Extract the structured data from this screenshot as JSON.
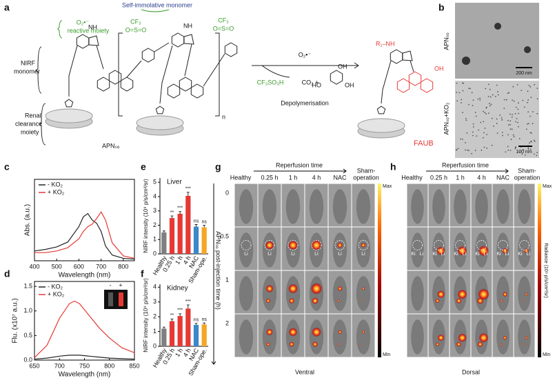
{
  "panel_labels": [
    "a",
    "b",
    "c",
    "d",
    "e",
    "f",
    "g",
    "h"
  ],
  "scheme": {
    "self_immolative": "Self-immolative monomer",
    "reactive": [
      "O₂•⁻",
      "reactive moiety"
    ],
    "cf3": [
      "CF₃",
      "CF₃"
    ],
    "so2": [
      "O=S=O",
      "O=S=O"
    ],
    "nirf": [
      "NIRF",
      "monomer"
    ],
    "renal": [
      "Renal",
      "clearance",
      "moiety"
    ],
    "apn": "APNₛₒ",
    "n": "n",
    "nh": [
      "NH",
      "NH"
    ],
    "trigger": "O₂•⁻",
    "byproducts": [
      "CF₃SO₃H",
      "CO₂ +"
    ],
    "triol": [
      "HO",
      "OH",
      "OH"
    ],
    "process": "Depolymerisation",
    "product": "FAUB",
    "r1nh": "R₁–NH",
    "oh": "OH"
  },
  "tem": {
    "top": "APNₛₒ",
    "bottom": "APNₛₒ+KO₂",
    "scale": [
      "200 nm",
      "100 nm"
    ]
  },
  "chart_data": [
    {
      "type": "line",
      "xlabel": "Wavelength (nm)",
      "ylabel": "Abs. (a.u.)",
      "xlim": [
        400,
        850
      ],
      "ylim": [
        0,
        1
      ],
      "xticks": [
        400,
        500,
        600,
        700,
        800
      ],
      "legend": "upper left",
      "x": [
        400,
        450,
        500,
        550,
        600,
        620,
        640,
        660,
        680,
        700,
        720,
        750,
        800,
        850
      ],
      "series": [
        {
          "name": "- KO₂",
          "color": "#222222",
          "values": [
            0.12,
            0.14,
            0.17,
            0.23,
            0.42,
            0.54,
            0.58,
            0.5,
            0.46,
            0.36,
            0.18,
            0.07,
            0.03,
            0.02
          ]
        },
        {
          "name": "+ KO₂",
          "color": "#e53935",
          "values": [
            0.1,
            0.1,
            0.12,
            0.16,
            0.27,
            0.36,
            0.42,
            0.45,
            0.52,
            0.6,
            0.5,
            0.22,
            0.06,
            0.03
          ]
        }
      ]
    },
    {
      "type": "line",
      "xlabel": "Wavelength (nm)",
      "ylabel": "Flu. (x10⁷ a.u.)",
      "xlim": [
        650,
        850
      ],
      "ylim": [
        0,
        1.6
      ],
      "xticks": [
        650,
        700,
        750,
        800,
        850
      ],
      "yticks": [
        {
          "value": 0,
          "label": "0.0"
        },
        0.5,
        {
          "value": 1,
          "label": "1.0"
        },
        1.5
      ],
      "legend": "upper left",
      "inset_labels": [
        "-",
        "+"
      ],
      "x": [
        650,
        675,
        700,
        720,
        730,
        740,
        760,
        780,
        800,
        825,
        850
      ],
      "series": [
        {
          "name": "- KO₂",
          "color": "#222222",
          "values": [
            0.02,
            0.04,
            0.08,
            0.1,
            0.1,
            0.1,
            0.08,
            0.06,
            0.04,
            0.03,
            0.02
          ]
        },
        {
          "name": "+ KO₂",
          "color": "#e53935",
          "values": [
            0.05,
            0.3,
            0.85,
            1.15,
            1.2,
            1.15,
            0.9,
            0.65,
            0.45,
            0.25,
            0.15
          ]
        }
      ]
    },
    {
      "type": "bar",
      "title": "Liver",
      "ylabel": "NIRF intensity (10⁹ p/s/cm²/sr)",
      "ylim": [
        0,
        5.3
      ],
      "yticks": [
        0,
        1,
        2,
        3,
        4,
        5
      ],
      "categories": [
        "Healthy",
        "0.25 h",
        "1 h",
        "4 h",
        "NAC",
        "Sham-ope."
      ],
      "values": [
        1.5,
        2.5,
        2.8,
        4.05,
        1.9,
        1.85
      ],
      "errors": [
        0.1,
        0.15,
        0.15,
        0.25,
        0.15,
        0.15
      ],
      "colors": [
        "#7f7f7f",
        "#e53935",
        "#e53935",
        "#e53935",
        "#3a88c8",
        "#f5a623"
      ],
      "significance": [
        null,
        "**",
        "***",
        "***",
        "ns",
        "ns"
      ]
    },
    {
      "type": "bar",
      "title": "Kidney",
      "ylabel": "NIRF intensity (10⁹ p/s/cm²/sr)",
      "ylim": [
        0,
        4.2
      ],
      "yticks": [
        0,
        1,
        2,
        3,
        4
      ],
      "categories": [
        "Healthy",
        "0.25 h",
        "1 h",
        "4 h",
        "NAC",
        "Sham-ope."
      ],
      "values": [
        1.2,
        1.7,
        2.05,
        2.55,
        1.45,
        1.48
      ],
      "errors": [
        0.1,
        0.15,
        0.15,
        0.25,
        0.1,
        0.1
      ],
      "colors": [
        "#7f7f7f",
        "#e53935",
        "#e53935",
        "#e53935",
        "#3a88c8",
        "#f5a623"
      ],
      "significance": [
        null,
        "**",
        "***",
        "***",
        "ns",
        "ns"
      ]
    }
  ],
  "imaging": [
    {
      "header": "Reperfusion time",
      "columns": [
        "Healthy",
        "0.25 h",
        "1 h",
        "4 h",
        "NAC"
      ],
      "sham": [
        "Sham-",
        "operation"
      ],
      "rows": [
        "0",
        "0.5",
        "1",
        "2"
      ],
      "row_axis": "APNₛₒ post-injection time (h)",
      "view": "Ventral",
      "scale": [
        "Max",
        "Min"
      ],
      "organ_labels": [
        "Li"
      ]
    },
    {
      "header": "Reperfusion time",
      "columns": [
        "Healthy",
        "0.25 h",
        "1 h",
        "4 h",
        "NAC"
      ],
      "sham": [
        "Sham-",
        "operation"
      ],
      "view": "Dorsal",
      "scale": [
        "Max",
        "Min"
      ],
      "scale_label": "Radiance (10⁹ p/s/cm²/sr)",
      "organ_labels": [
        "Ki",
        "Li"
      ]
    }
  ]
}
